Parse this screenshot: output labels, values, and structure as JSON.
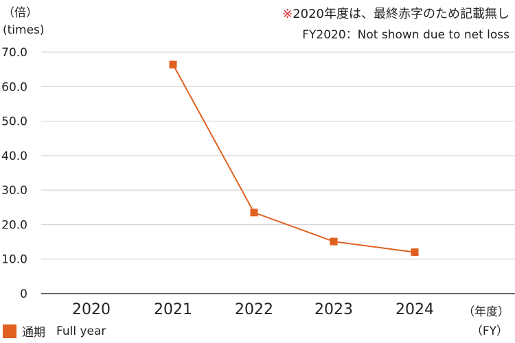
{
  "header": {
    "unit_ja": "（倍）",
    "unit_en": "(times)",
    "note_mark": "※",
    "note_ja": "2020年度は、最終赤字のため記載無し",
    "note_en": "FY2020：Not shown due to net loss"
  },
  "x_unit": {
    "ja": "（年度）",
    "en": "（FY）"
  },
  "legend": {
    "ja": "通期",
    "en": "Full year",
    "color": "#e06020"
  },
  "chart_data": {
    "type": "line",
    "categories": [
      "2020",
      "2021",
      "2022",
      "2023",
      "2024"
    ],
    "series": [
      {
        "name": "通期 Full year",
        "color": "#e06020",
        "values": [
          null,
          66.4,
          23.5,
          15.1,
          12.0
        ]
      }
    ],
    "yticks": [
      "70.0",
      "60.0",
      "50.0",
      "40.0",
      "30.0",
      "20.0",
      "10.0",
      "0"
    ],
    "ylim": [
      0,
      70
    ],
    "grid": true,
    "legend_position": "bottom-left"
  }
}
